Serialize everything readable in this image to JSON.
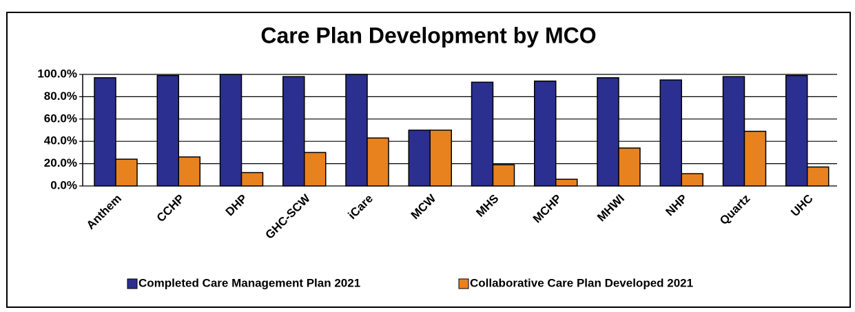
{
  "chart_data": {
    "type": "bar",
    "title": "Care Plan Development by MCO",
    "categories": [
      "Anthem",
      "CCHP",
      "DHP",
      "GHC-SCW",
      "iCare",
      "MCW",
      "MHS",
      "MCHP",
      "MHWI",
      "NHP",
      "Quartz",
      "UHC"
    ],
    "series": [
      {
        "name": "Completed Care Management Plan 2021",
        "color": "#2b2f8f",
        "values": [
          97,
          99,
          100,
          98,
          100,
          50,
          93,
          94,
          97,
          95,
          98,
          99
        ]
      },
      {
        "name": "Collaborative Care Plan Developed 2021",
        "color": "#e8821e",
        "values": [
          24,
          26,
          12,
          30,
          43,
          50,
          19,
          6,
          34,
          11,
          49,
          17
        ]
      }
    ],
    "ylim": [
      0,
      100
    ],
    "yticks": [
      {
        "value": 0,
        "label": "0.0%"
      },
      {
        "value": 20,
        "label": "20.0%"
      },
      {
        "value": 40,
        "label": "40.0%"
      },
      {
        "value": 60,
        "label": "60.0%"
      },
      {
        "value": 80,
        "label": "80.0%"
      },
      {
        "value": 100,
        "label": "100.0%"
      }
    ],
    "grid": true,
    "legend": "bottom"
  }
}
